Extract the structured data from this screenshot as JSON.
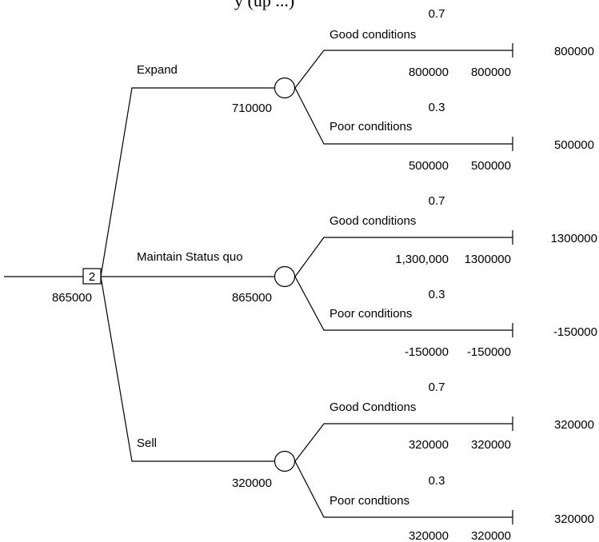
{
  "title": "y (up ...)",
  "root": {
    "value": "865000",
    "decision_label": "2"
  },
  "branches": [
    {
      "label": "Expand",
      "ev": "710000",
      "outcomes": [
        {
          "prob": "0.7",
          "label": "Good conditions",
          "value_left": "800000",
          "value_right": "800000",
          "payoff": "800000"
        },
        {
          "prob": "0.3",
          "label": "Poor conditions",
          "value_left": "500000",
          "value_right": "500000",
          "payoff": "500000"
        }
      ]
    },
    {
      "label": "Maintain Status quo",
      "ev": "865000",
      "outcomes": [
        {
          "prob": "0.7",
          "label": "Good conditions",
          "value_left": "1,300,000",
          "value_right": "1300000",
          "payoff": "1300000"
        },
        {
          "prob": "0.3",
          "label": "Poor conditions",
          "value_left": "-150000",
          "value_right": "-150000",
          "payoff": "-150000"
        }
      ]
    },
    {
      "label": "Sell",
      "ev": "320000",
      "outcomes": [
        {
          "prob": "0.7",
          "label": "Good Condtions",
          "value_left": "320000",
          "value_right": "320000",
          "payoff": "320000"
        },
        {
          "prob": "0.3",
          "label": "Poor condtions",
          "value_left": "320000",
          "value_right": "320000",
          "payoff": "320000"
        }
      ]
    }
  ]
}
